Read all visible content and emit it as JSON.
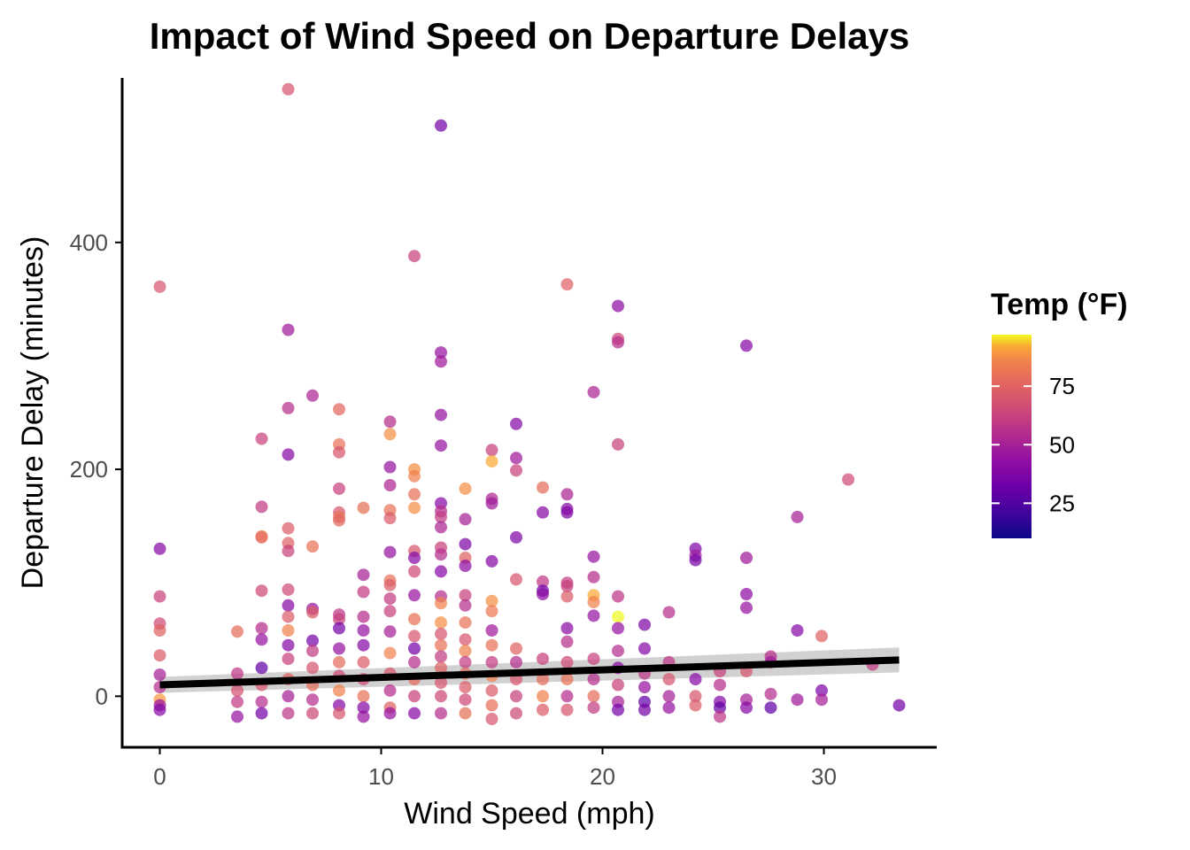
{
  "chart_data": {
    "type": "scatter",
    "title": "Impact of Wind Speed on Departure Delays",
    "xlabel": "Wind Speed (mph)",
    "ylabel": "Departure Delay (minutes)",
    "xlim": [
      -1.7,
      35.1
    ],
    "ylim": [
      -45,
      545
    ],
    "x_ticks": [
      0,
      10,
      20,
      30
    ],
    "x_tick_labels": [
      "0",
      "10",
      "20",
      "30"
    ],
    "y_ticks": [
      0,
      200,
      400
    ],
    "y_tick_labels": [
      "0",
      "200",
      "400"
    ],
    "grid": false,
    "legend": {
      "title": "Temp (°F)",
      "placement": "right",
      "type": "colorbar",
      "palette": "plasma",
      "range": [
        10,
        97
      ],
      "ticks": [
        25,
        50,
        75
      ],
      "tick_labels": [
        "25",
        "50",
        "75"
      ]
    },
    "trend_line": {
      "method": "linear",
      "x": [
        0,
        33.4
      ],
      "y": [
        10,
        32
      ],
      "ci_lower": [
        3,
        21
      ],
      "ci_upper": [
        17,
        43
      ],
      "color": "#000000",
      "band_color": "#999999"
    },
    "points": [
      {
        "x": 0,
        "y": 361,
        "temp": 70
      },
      {
        "x": 0,
        "y": 130,
        "temp": 40
      },
      {
        "x": 0,
        "y": 88,
        "temp": 62
      },
      {
        "x": 0,
        "y": 64,
        "temp": 66
      },
      {
        "x": 0,
        "y": 58,
        "temp": 75
      },
      {
        "x": 0,
        "y": 36,
        "temp": 72
      },
      {
        "x": 0,
        "y": 19,
        "temp": 50
      },
      {
        "x": 0,
        "y": 8,
        "temp": 55
      },
      {
        "x": 0,
        "y": -3,
        "temp": 90
      },
      {
        "x": 0,
        "y": -8,
        "temp": 45
      },
      {
        "x": 0,
        "y": -12,
        "temp": 40
      },
      {
        "x": 3.5,
        "y": 57,
        "temp": 78
      },
      {
        "x": 3.5,
        "y": 20,
        "temp": 58
      },
      {
        "x": 3.5,
        "y": 5,
        "temp": 68
      },
      {
        "x": 3.5,
        "y": -5,
        "temp": 60
      },
      {
        "x": 3.5,
        "y": -18,
        "temp": 45
      },
      {
        "x": 4.6,
        "y": 227,
        "temp": 62
      },
      {
        "x": 4.6,
        "y": 167,
        "temp": 60
      },
      {
        "x": 4.6,
        "y": 141,
        "temp": 82
      },
      {
        "x": 4.6,
        "y": 140,
        "temp": 78
      },
      {
        "x": 4.6,
        "y": 93,
        "temp": 65
      },
      {
        "x": 4.6,
        "y": 60,
        "temp": 55
      },
      {
        "x": 4.6,
        "y": 50,
        "temp": 45
      },
      {
        "x": 4.6,
        "y": 25,
        "temp": 30
      },
      {
        "x": 4.6,
        "y": 10,
        "temp": 70
      },
      {
        "x": 4.6,
        "y": -5,
        "temp": 55
      },
      {
        "x": 4.6,
        "y": -15,
        "temp": 35
      },
      {
        "x": 5.8,
        "y": 535,
        "temp": 70
      },
      {
        "x": 5.8,
        "y": 323,
        "temp": 48
      },
      {
        "x": 5.8,
        "y": 254,
        "temp": 55
      },
      {
        "x": 5.8,
        "y": 213,
        "temp": 40
      },
      {
        "x": 5.8,
        "y": 148,
        "temp": 72
      },
      {
        "x": 5.8,
        "y": 135,
        "temp": 74
      },
      {
        "x": 5.8,
        "y": 128,
        "temp": 62
      },
      {
        "x": 5.8,
        "y": 94,
        "temp": 66
      },
      {
        "x": 5.8,
        "y": 80,
        "temp": 40
      },
      {
        "x": 5.8,
        "y": 70,
        "temp": 72
      },
      {
        "x": 5.8,
        "y": 58,
        "temp": 85
      },
      {
        "x": 5.8,
        "y": 45,
        "temp": 40
      },
      {
        "x": 5.8,
        "y": 33,
        "temp": 62
      },
      {
        "x": 5.8,
        "y": 15,
        "temp": 75
      },
      {
        "x": 5.8,
        "y": 0,
        "temp": 50
      },
      {
        "x": 5.8,
        "y": -15,
        "temp": 58
      },
      {
        "x": 6.9,
        "y": 265,
        "temp": 52
      },
      {
        "x": 6.9,
        "y": 132,
        "temp": 80
      },
      {
        "x": 6.9,
        "y": 77,
        "temp": 45
      },
      {
        "x": 6.9,
        "y": 74,
        "temp": 72
      },
      {
        "x": 6.9,
        "y": 49,
        "temp": 35
      },
      {
        "x": 6.9,
        "y": 40,
        "temp": 60
      },
      {
        "x": 6.9,
        "y": 25,
        "temp": 70
      },
      {
        "x": 6.9,
        "y": 10,
        "temp": 78
      },
      {
        "x": 6.9,
        "y": -3,
        "temp": 55
      },
      {
        "x": 6.9,
        "y": -15,
        "temp": 65
      },
      {
        "x": 8.1,
        "y": 253,
        "temp": 76
      },
      {
        "x": 8.1,
        "y": 222,
        "temp": 80
      },
      {
        "x": 8.1,
        "y": 215,
        "temp": 70
      },
      {
        "x": 8.1,
        "y": 183,
        "temp": 62
      },
      {
        "x": 8.1,
        "y": 162,
        "temp": 70
      },
      {
        "x": 8.1,
        "y": 158,
        "temp": 80
      },
      {
        "x": 8.1,
        "y": 155,
        "temp": 76
      },
      {
        "x": 8.1,
        "y": 72,
        "temp": 58
      },
      {
        "x": 8.1,
        "y": 68,
        "temp": 62
      },
      {
        "x": 8.1,
        "y": 60,
        "temp": 35
      },
      {
        "x": 8.1,
        "y": 42,
        "temp": 45
      },
      {
        "x": 8.1,
        "y": 30,
        "temp": 78
      },
      {
        "x": 8.1,
        "y": 18,
        "temp": 65
      },
      {
        "x": 8.1,
        "y": 5,
        "temp": 85
      },
      {
        "x": 8.1,
        "y": -8,
        "temp": 40
      },
      {
        "x": 8.1,
        "y": -15,
        "temp": 70
      },
      {
        "x": 9.2,
        "y": 166,
        "temp": 80
      },
      {
        "x": 9.2,
        "y": 107,
        "temp": 50
      },
      {
        "x": 9.2,
        "y": 92,
        "temp": 60
      },
      {
        "x": 9.2,
        "y": 70,
        "temp": 55
      },
      {
        "x": 9.2,
        "y": 58,
        "temp": 45
      },
      {
        "x": 9.2,
        "y": 45,
        "temp": 40
      },
      {
        "x": 9.2,
        "y": 30,
        "temp": 72
      },
      {
        "x": 9.2,
        "y": 15,
        "temp": 65
      },
      {
        "x": 9.2,
        "y": 0,
        "temp": 80
      },
      {
        "x": 9.2,
        "y": -10,
        "temp": 40
      },
      {
        "x": 9.2,
        "y": -18,
        "temp": 45
      },
      {
        "x": 10.4,
        "y": 242,
        "temp": 55
      },
      {
        "x": 10.4,
        "y": 231,
        "temp": 88
      },
      {
        "x": 10.4,
        "y": 202,
        "temp": 45
      },
      {
        "x": 10.4,
        "y": 186,
        "temp": 52
      },
      {
        "x": 10.4,
        "y": 164,
        "temp": 80
      },
      {
        "x": 10.4,
        "y": 157,
        "temp": 72
      },
      {
        "x": 10.4,
        "y": 127,
        "temp": 45
      },
      {
        "x": 10.4,
        "y": 102,
        "temp": 80
      },
      {
        "x": 10.4,
        "y": 98,
        "temp": 72
      },
      {
        "x": 10.4,
        "y": 86,
        "temp": 60
      },
      {
        "x": 10.4,
        "y": 75,
        "temp": 62
      },
      {
        "x": 10.4,
        "y": 57,
        "temp": 50
      },
      {
        "x": 10.4,
        "y": 38,
        "temp": 85
      },
      {
        "x": 10.4,
        "y": 20,
        "temp": 70
      },
      {
        "x": 10.4,
        "y": 5,
        "temp": 55
      },
      {
        "x": 10.4,
        "y": -10,
        "temp": 75
      },
      {
        "x": 10.4,
        "y": -15,
        "temp": 45
      },
      {
        "x": 11.5,
        "y": 388,
        "temp": 62
      },
      {
        "x": 11.5,
        "y": 200,
        "temp": 88
      },
      {
        "x": 11.5,
        "y": 194,
        "temp": 85
      },
      {
        "x": 11.5,
        "y": 178,
        "temp": 80
      },
      {
        "x": 11.5,
        "y": 166,
        "temp": 88
      },
      {
        "x": 11.5,
        "y": 128,
        "temp": 70
      },
      {
        "x": 11.5,
        "y": 122,
        "temp": 40
      },
      {
        "x": 11.5,
        "y": 110,
        "temp": 65
      },
      {
        "x": 11.5,
        "y": 89,
        "temp": 45
      },
      {
        "x": 11.5,
        "y": 68,
        "temp": 80
      },
      {
        "x": 11.5,
        "y": 53,
        "temp": 70
      },
      {
        "x": 11.5,
        "y": 42,
        "temp": 35
      },
      {
        "x": 11.5,
        "y": 30,
        "temp": 55
      },
      {
        "x": 11.5,
        "y": 15,
        "temp": 78
      },
      {
        "x": 11.5,
        "y": 0,
        "temp": 62
      },
      {
        "x": 11.5,
        "y": -15,
        "temp": 40
      },
      {
        "x": 12.7,
        "y": 503,
        "temp": 35
      },
      {
        "x": 12.7,
        "y": 303,
        "temp": 45
      },
      {
        "x": 12.7,
        "y": 295,
        "temp": 48
      },
      {
        "x": 12.7,
        "y": 248,
        "temp": 45
      },
      {
        "x": 12.7,
        "y": 221,
        "temp": 45
      },
      {
        "x": 12.7,
        "y": 170,
        "temp": 40
      },
      {
        "x": 12.7,
        "y": 163,
        "temp": 55
      },
      {
        "x": 12.7,
        "y": 158,
        "temp": 60
      },
      {
        "x": 12.7,
        "y": 149,
        "temp": 52
      },
      {
        "x": 12.7,
        "y": 131,
        "temp": 62
      },
      {
        "x": 12.7,
        "y": 125,
        "temp": 55
      },
      {
        "x": 12.7,
        "y": 110,
        "temp": 40
      },
      {
        "x": 12.7,
        "y": 88,
        "temp": 55
      },
      {
        "x": 12.7,
        "y": 82,
        "temp": 85
      },
      {
        "x": 12.7,
        "y": 65,
        "temp": 88
      },
      {
        "x": 12.7,
        "y": 55,
        "temp": 70
      },
      {
        "x": 12.7,
        "y": 45,
        "temp": 80
      },
      {
        "x": 12.7,
        "y": 35,
        "temp": 60
      },
      {
        "x": 12.7,
        "y": 25,
        "temp": 75
      },
      {
        "x": 12.7,
        "y": 12,
        "temp": 70
      },
      {
        "x": 12.7,
        "y": 0,
        "temp": 65
      },
      {
        "x": 12.7,
        "y": -15,
        "temp": 55
      },
      {
        "x": 13.8,
        "y": 183,
        "temp": 88
      },
      {
        "x": 13.8,
        "y": 156,
        "temp": 50
      },
      {
        "x": 13.8,
        "y": 134,
        "temp": 38
      },
      {
        "x": 13.8,
        "y": 122,
        "temp": 75
      },
      {
        "x": 13.8,
        "y": 115,
        "temp": 42
      },
      {
        "x": 13.8,
        "y": 89,
        "temp": 62
      },
      {
        "x": 13.8,
        "y": 80,
        "temp": 55
      },
      {
        "x": 13.8,
        "y": 65,
        "temp": 80
      },
      {
        "x": 13.8,
        "y": 50,
        "temp": 70
      },
      {
        "x": 13.8,
        "y": 40,
        "temp": 85
      },
      {
        "x": 13.8,
        "y": 30,
        "temp": 60
      },
      {
        "x": 13.8,
        "y": 20,
        "temp": 78
      },
      {
        "x": 13.8,
        "y": 8,
        "temp": 72
      },
      {
        "x": 13.8,
        "y": -3,
        "temp": 65
      },
      {
        "x": 13.8,
        "y": -15,
        "temp": 80
      },
      {
        "x": 15.0,
        "y": 217,
        "temp": 62
      },
      {
        "x": 15.0,
        "y": 207,
        "temp": 92
      },
      {
        "x": 15.0,
        "y": 174,
        "temp": 52
      },
      {
        "x": 15.0,
        "y": 170,
        "temp": 48
      },
      {
        "x": 15.0,
        "y": 119,
        "temp": 40
      },
      {
        "x": 15.0,
        "y": 84,
        "temp": 88
      },
      {
        "x": 15.0,
        "y": 75,
        "temp": 82
      },
      {
        "x": 15.0,
        "y": 58,
        "temp": 48
      },
      {
        "x": 15.0,
        "y": 45,
        "temp": 80
      },
      {
        "x": 15.0,
        "y": 30,
        "temp": 60
      },
      {
        "x": 15.0,
        "y": 18,
        "temp": 85
      },
      {
        "x": 15.0,
        "y": 5,
        "temp": 72
      },
      {
        "x": 15.0,
        "y": -8,
        "temp": 80
      },
      {
        "x": 15.0,
        "y": -20,
        "temp": 70
      },
      {
        "x": 16.1,
        "y": 240,
        "temp": 40
      },
      {
        "x": 16.1,
        "y": 210,
        "temp": 48
      },
      {
        "x": 16.1,
        "y": 199,
        "temp": 62
      },
      {
        "x": 16.1,
        "y": 140,
        "temp": 38
      },
      {
        "x": 16.1,
        "y": 103,
        "temp": 70
      },
      {
        "x": 16.1,
        "y": 42,
        "temp": 75
      },
      {
        "x": 16.1,
        "y": 30,
        "temp": 55
      },
      {
        "x": 16.1,
        "y": 15,
        "temp": 70
      },
      {
        "x": 16.1,
        "y": 0,
        "temp": 62
      },
      {
        "x": 16.1,
        "y": -15,
        "temp": 65
      },
      {
        "x": 17.3,
        "y": 184,
        "temp": 78
      },
      {
        "x": 17.3,
        "y": 162,
        "temp": 40
      },
      {
        "x": 17.3,
        "y": 101,
        "temp": 58
      },
      {
        "x": 17.3,
        "y": 93,
        "temp": 35
      },
      {
        "x": 17.3,
        "y": 90,
        "temp": 42
      },
      {
        "x": 17.3,
        "y": 33,
        "temp": 62
      },
      {
        "x": 17.3,
        "y": 15,
        "temp": 78
      },
      {
        "x": 17.3,
        "y": 0,
        "temp": 85
      },
      {
        "x": 17.3,
        "y": -12,
        "temp": 72
      },
      {
        "x": 18.4,
        "y": 363,
        "temp": 74
      },
      {
        "x": 18.4,
        "y": 178,
        "temp": 52
      },
      {
        "x": 18.4,
        "y": 165,
        "temp": 40
      },
      {
        "x": 18.4,
        "y": 162,
        "temp": 38
      },
      {
        "x": 18.4,
        "y": 100,
        "temp": 60
      },
      {
        "x": 18.4,
        "y": 97,
        "temp": 62
      },
      {
        "x": 18.4,
        "y": 88,
        "temp": 72
      },
      {
        "x": 18.4,
        "y": 60,
        "temp": 42
      },
      {
        "x": 18.4,
        "y": 48,
        "temp": 55
      },
      {
        "x": 18.4,
        "y": 30,
        "temp": 65
      },
      {
        "x": 18.4,
        "y": 15,
        "temp": 80
      },
      {
        "x": 18.4,
        "y": 0,
        "temp": 55
      },
      {
        "x": 18.4,
        "y": -12,
        "temp": 70
      },
      {
        "x": 19.6,
        "y": 268,
        "temp": 52
      },
      {
        "x": 19.6,
        "y": 123,
        "temp": 45
      },
      {
        "x": 19.6,
        "y": 105,
        "temp": 55
      },
      {
        "x": 19.6,
        "y": 89,
        "temp": 92
      },
      {
        "x": 19.6,
        "y": 83,
        "temp": 85
      },
      {
        "x": 19.6,
        "y": 71,
        "temp": 45
      },
      {
        "x": 19.6,
        "y": 33,
        "temp": 62
      },
      {
        "x": 19.6,
        "y": 15,
        "temp": 55
      },
      {
        "x": 19.6,
        "y": 0,
        "temp": 78
      },
      {
        "x": 19.6,
        "y": -10,
        "temp": 60
      },
      {
        "x": 20.7,
        "y": 344,
        "temp": 42
      },
      {
        "x": 20.7,
        "y": 315,
        "temp": 65
      },
      {
        "x": 20.7,
        "y": 312,
        "temp": 55
      },
      {
        "x": 20.7,
        "y": 222,
        "temp": 62
      },
      {
        "x": 20.7,
        "y": 88,
        "temp": 58
      },
      {
        "x": 20.7,
        "y": 70,
        "temp": 97
      },
      {
        "x": 20.7,
        "y": 60,
        "temp": 45
      },
      {
        "x": 20.7,
        "y": 40,
        "temp": 55
      },
      {
        "x": 20.7,
        "y": 25,
        "temp": 40
      },
      {
        "x": 20.7,
        "y": 10,
        "temp": 62
      },
      {
        "x": 20.7,
        "y": -5,
        "temp": 50
      },
      {
        "x": 20.7,
        "y": -12,
        "temp": 35
      },
      {
        "x": 21.9,
        "y": 63,
        "temp": 38
      },
      {
        "x": 21.9,
        "y": 42,
        "temp": 40
      },
      {
        "x": 21.9,
        "y": 20,
        "temp": 58
      },
      {
        "x": 21.9,
        "y": 8,
        "temp": 45
      },
      {
        "x": 21.9,
        "y": -5,
        "temp": 30
      },
      {
        "x": 21.9,
        "y": -12,
        "temp": 35
      },
      {
        "x": 23.0,
        "y": 74,
        "temp": 55
      },
      {
        "x": 23.0,
        "y": 30,
        "temp": 58
      },
      {
        "x": 23.0,
        "y": 15,
        "temp": 70
      },
      {
        "x": 23.0,
        "y": 0,
        "temp": 50
      },
      {
        "x": 23.0,
        "y": -10,
        "temp": 45
      },
      {
        "x": 24.2,
        "y": 130,
        "temp": 38
      },
      {
        "x": 24.2,
        "y": 124,
        "temp": 48
      },
      {
        "x": 24.2,
        "y": 120,
        "temp": 35
      },
      {
        "x": 24.2,
        "y": 15,
        "temp": 40
      },
      {
        "x": 24.2,
        "y": 0,
        "temp": 70
      },
      {
        "x": 24.2,
        "y": -8,
        "temp": 72
      },
      {
        "x": 25.3,
        "y": 22,
        "temp": 62
      },
      {
        "x": 25.3,
        "y": 10,
        "temp": 55
      },
      {
        "x": 25.3,
        "y": -5,
        "temp": 40
      },
      {
        "x": 25.3,
        "y": -10,
        "temp": 30
      },
      {
        "x": 25.3,
        "y": -18,
        "temp": 58
      },
      {
        "x": 26.5,
        "y": 309,
        "temp": 40
      },
      {
        "x": 26.5,
        "y": 122,
        "temp": 48
      },
      {
        "x": 26.5,
        "y": 90,
        "temp": 42
      },
      {
        "x": 26.5,
        "y": 78,
        "temp": 45
      },
      {
        "x": 26.5,
        "y": 22,
        "temp": 70
      },
      {
        "x": 26.5,
        "y": -3,
        "temp": 50
      },
      {
        "x": 26.5,
        "y": -10,
        "temp": 40
      },
      {
        "x": 27.6,
        "y": 35,
        "temp": 55
      },
      {
        "x": 27.6,
        "y": 30,
        "temp": 48
      },
      {
        "x": 27.6,
        "y": 2,
        "temp": 55
      },
      {
        "x": 27.6,
        "y": -10,
        "temp": 30
      },
      {
        "x": 28.8,
        "y": 158,
        "temp": 50
      },
      {
        "x": 28.8,
        "y": 58,
        "temp": 40
      },
      {
        "x": 28.8,
        "y": -3,
        "temp": 48
      },
      {
        "x": 29.9,
        "y": 53,
        "temp": 75
      },
      {
        "x": 29.9,
        "y": 5,
        "temp": 38
      },
      {
        "x": 29.9,
        "y": -3,
        "temp": 50
      },
      {
        "x": 31.1,
        "y": 191,
        "temp": 66
      },
      {
        "x": 32.2,
        "y": 28,
        "temp": 60
      },
      {
        "x": 33.4,
        "y": -8,
        "temp": 35
      }
    ]
  }
}
